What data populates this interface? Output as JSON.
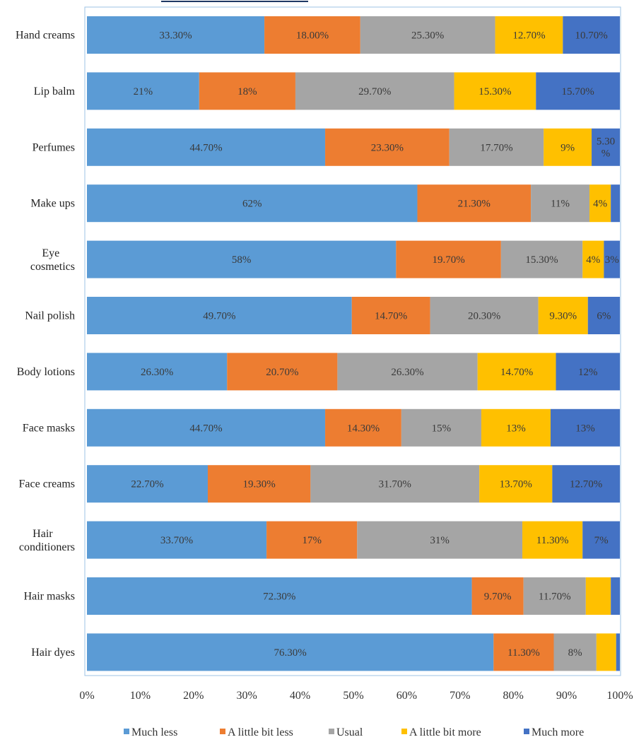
{
  "chart_data": {
    "type": "bar",
    "orientation": "horizontal",
    "stacked": "percent",
    "categories": [
      "Hand creams",
      "Lip balm",
      "Perfumes",
      "Make ups",
      "Eye cosmetics",
      "Nail polish",
      "Body lotions",
      "Face masks",
      "Face creams",
      "Hair conditioners",
      "Hair masks",
      "Hair dyes"
    ],
    "series": [
      {
        "name": "Much less",
        "color": "#5B9BD5",
        "values": [
          33.3,
          21,
          44.7,
          62,
          58,
          49.7,
          26.3,
          44.7,
          22.7,
          33.7,
          72.3,
          76.3
        ],
        "labels": [
          "33.30%",
          "21%",
          "44.70%",
          "62%",
          "58%",
          "49.70%",
          "26.30%",
          "44.70%",
          "22.70%",
          "33.70%",
          "72.30%",
          "76.30%"
        ]
      },
      {
        "name": "A little bit less",
        "color": "#ED7D31",
        "values": [
          18,
          18,
          23.3,
          21.3,
          19.7,
          14.7,
          20.7,
          14.3,
          19.3,
          17,
          9.7,
          11.3
        ],
        "labels": [
          "18.00%",
          "18%",
          "23.30%",
          "21.30%",
          "19.70%",
          "14.70%",
          "20.70%",
          "14.30%",
          "19.30%",
          "17%",
          "9.70%",
          "11.30%"
        ]
      },
      {
        "name": "Usual",
        "color": "#A5A5A5",
        "values": [
          25.3,
          29.7,
          17.7,
          11,
          15.3,
          20.3,
          26.3,
          15,
          31.7,
          31,
          11.7,
          8
        ],
        "labels": [
          "25.30%",
          "29.70%",
          "17.70%",
          "11%",
          "15.30%",
          "20.30%",
          "26.30%",
          "15%",
          "31.70%",
          "31%",
          "11.70%",
          "8%"
        ]
      },
      {
        "name": "A little bit more",
        "color": "#FFC000",
        "values": [
          12.7,
          15.3,
          9,
          4,
          4,
          9.3,
          14.7,
          13,
          13.7,
          11.3,
          4.7,
          3.7
        ],
        "labels": [
          "12.70%",
          "15.30%",
          "9%",
          "4%",
          "4%",
          "9.30%",
          "14.70%",
          "13%",
          "13.70%",
          "11.30%",
          "",
          ""
        ]
      },
      {
        "name": "Much more",
        "color": "#4472C4",
        "values": [
          10.7,
          15.7,
          5.3,
          1.7,
          3,
          6,
          12,
          13,
          12.7,
          7,
          1.7,
          0.7
        ],
        "labels": [
          "10.70%",
          "15.70%",
          "5.30%",
          "",
          "3%",
          "6%",
          "12%",
          "13%",
          "12.70%",
          "7%",
          "",
          ""
        ]
      }
    ],
    "x_ticks": [
      "0%",
      "10%",
      "20%",
      "30%",
      "40%",
      "50%",
      "60%",
      "70%",
      "80%",
      "90%",
      "100%"
    ],
    "xlim": [
      0,
      100
    ],
    "legend": "bottom",
    "grid": false
  }
}
